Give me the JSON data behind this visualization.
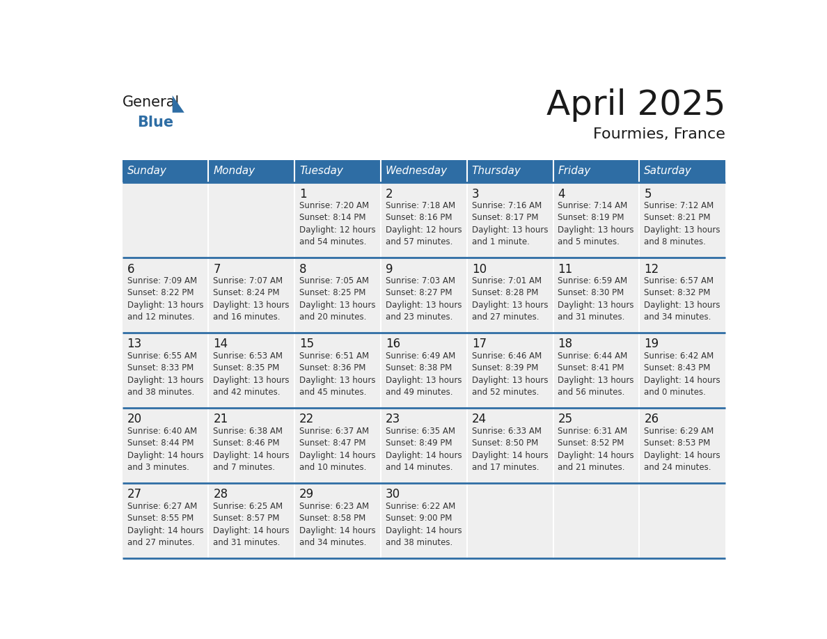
{
  "title": "April 2025",
  "subtitle": "Fourmies, France",
  "header_color": "#2E6DA4",
  "header_text_color": "#FFFFFF",
  "cell_bg": "#EFEFEF",
  "empty_cell_bg": "#EFEFEF",
  "separator_color": "#2E6DA4",
  "day_number_color": "#1a1a1a",
  "cell_text_color": "#333333",
  "logo_general_color": "#1a1a1a",
  "logo_blue_color": "#2E6DA4",
  "logo_triangle_color": "#2E6DA4",
  "title_color": "#1a1a1a",
  "subtitle_color": "#1a1a1a",
  "days_of_week": [
    "Sunday",
    "Monday",
    "Tuesday",
    "Wednesday",
    "Thursday",
    "Friday",
    "Saturday"
  ],
  "weeks": [
    [
      {
        "day": "",
        "info": ""
      },
      {
        "day": "",
        "info": ""
      },
      {
        "day": "1",
        "info": "Sunrise: 7:20 AM\nSunset: 8:14 PM\nDaylight: 12 hours\nand 54 minutes."
      },
      {
        "day": "2",
        "info": "Sunrise: 7:18 AM\nSunset: 8:16 PM\nDaylight: 12 hours\nand 57 minutes."
      },
      {
        "day": "3",
        "info": "Sunrise: 7:16 AM\nSunset: 8:17 PM\nDaylight: 13 hours\nand 1 minute."
      },
      {
        "day": "4",
        "info": "Sunrise: 7:14 AM\nSunset: 8:19 PM\nDaylight: 13 hours\nand 5 minutes."
      },
      {
        "day": "5",
        "info": "Sunrise: 7:12 AM\nSunset: 8:21 PM\nDaylight: 13 hours\nand 8 minutes."
      }
    ],
    [
      {
        "day": "6",
        "info": "Sunrise: 7:09 AM\nSunset: 8:22 PM\nDaylight: 13 hours\nand 12 minutes."
      },
      {
        "day": "7",
        "info": "Sunrise: 7:07 AM\nSunset: 8:24 PM\nDaylight: 13 hours\nand 16 minutes."
      },
      {
        "day": "8",
        "info": "Sunrise: 7:05 AM\nSunset: 8:25 PM\nDaylight: 13 hours\nand 20 minutes."
      },
      {
        "day": "9",
        "info": "Sunrise: 7:03 AM\nSunset: 8:27 PM\nDaylight: 13 hours\nand 23 minutes."
      },
      {
        "day": "10",
        "info": "Sunrise: 7:01 AM\nSunset: 8:28 PM\nDaylight: 13 hours\nand 27 minutes."
      },
      {
        "day": "11",
        "info": "Sunrise: 6:59 AM\nSunset: 8:30 PM\nDaylight: 13 hours\nand 31 minutes."
      },
      {
        "day": "12",
        "info": "Sunrise: 6:57 AM\nSunset: 8:32 PM\nDaylight: 13 hours\nand 34 minutes."
      }
    ],
    [
      {
        "day": "13",
        "info": "Sunrise: 6:55 AM\nSunset: 8:33 PM\nDaylight: 13 hours\nand 38 minutes."
      },
      {
        "day": "14",
        "info": "Sunrise: 6:53 AM\nSunset: 8:35 PM\nDaylight: 13 hours\nand 42 minutes."
      },
      {
        "day": "15",
        "info": "Sunrise: 6:51 AM\nSunset: 8:36 PM\nDaylight: 13 hours\nand 45 minutes."
      },
      {
        "day": "16",
        "info": "Sunrise: 6:49 AM\nSunset: 8:38 PM\nDaylight: 13 hours\nand 49 minutes."
      },
      {
        "day": "17",
        "info": "Sunrise: 6:46 AM\nSunset: 8:39 PM\nDaylight: 13 hours\nand 52 minutes."
      },
      {
        "day": "18",
        "info": "Sunrise: 6:44 AM\nSunset: 8:41 PM\nDaylight: 13 hours\nand 56 minutes."
      },
      {
        "day": "19",
        "info": "Sunrise: 6:42 AM\nSunset: 8:43 PM\nDaylight: 14 hours\nand 0 minutes."
      }
    ],
    [
      {
        "day": "20",
        "info": "Sunrise: 6:40 AM\nSunset: 8:44 PM\nDaylight: 14 hours\nand 3 minutes."
      },
      {
        "day": "21",
        "info": "Sunrise: 6:38 AM\nSunset: 8:46 PM\nDaylight: 14 hours\nand 7 minutes."
      },
      {
        "day": "22",
        "info": "Sunrise: 6:37 AM\nSunset: 8:47 PM\nDaylight: 14 hours\nand 10 minutes."
      },
      {
        "day": "23",
        "info": "Sunrise: 6:35 AM\nSunset: 8:49 PM\nDaylight: 14 hours\nand 14 minutes."
      },
      {
        "day": "24",
        "info": "Sunrise: 6:33 AM\nSunset: 8:50 PM\nDaylight: 14 hours\nand 17 minutes."
      },
      {
        "day": "25",
        "info": "Sunrise: 6:31 AM\nSunset: 8:52 PM\nDaylight: 14 hours\nand 21 minutes."
      },
      {
        "day": "26",
        "info": "Sunrise: 6:29 AM\nSunset: 8:53 PM\nDaylight: 14 hours\nand 24 minutes."
      }
    ],
    [
      {
        "day": "27",
        "info": "Sunrise: 6:27 AM\nSunset: 8:55 PM\nDaylight: 14 hours\nand 27 minutes."
      },
      {
        "day": "28",
        "info": "Sunrise: 6:25 AM\nSunset: 8:57 PM\nDaylight: 14 hours\nand 31 minutes."
      },
      {
        "day": "29",
        "info": "Sunrise: 6:23 AM\nSunset: 8:58 PM\nDaylight: 14 hours\nand 34 minutes."
      },
      {
        "day": "30",
        "info": "Sunrise: 6:22 AM\nSunset: 9:00 PM\nDaylight: 14 hours\nand 38 minutes."
      },
      {
        "day": "",
        "info": ""
      },
      {
        "day": "",
        "info": ""
      },
      {
        "day": "",
        "info": ""
      }
    ]
  ]
}
